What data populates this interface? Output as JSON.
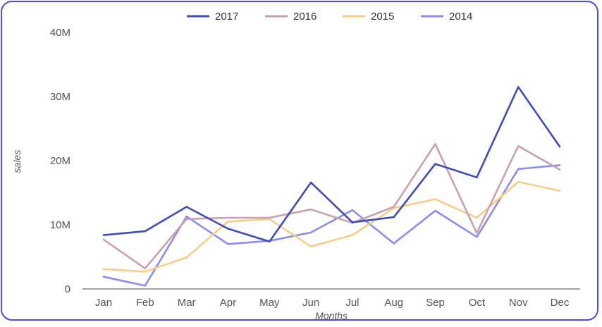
{
  "chart_data": {
    "type": "line",
    "title": "",
    "xlabel": "Months",
    "ylabel": "sales",
    "categories": [
      "Jan",
      "Feb",
      "Mar",
      "Apr",
      "May",
      "Jun",
      "Jul",
      "Aug",
      "Sep",
      "Oct",
      "Nov",
      "Dec"
    ],
    "ylim": [
      0,
      40000000
    ],
    "yticks": [
      0,
      10000000,
      20000000,
      30000000,
      40000000
    ],
    "ytick_labels": [
      "0",
      "10M",
      "20M",
      "30M",
      "40M"
    ],
    "grid": false,
    "legend_position": "top",
    "series": [
      {
        "name": "2017",
        "color": "#3f4db5",
        "values": [
          8400000,
          9000000,
          12800000,
          9400000,
          7400000,
          16600000,
          10400000,
          11200000,
          19500000,
          17400000,
          31500000,
          22200000
        ]
      },
      {
        "name": "2016",
        "color": "#c9a0ad",
        "values": [
          7700000,
          3200000,
          10900000,
          11100000,
          11100000,
          12400000,
          10300000,
          12800000,
          22600000,
          8700000,
          22300000,
          18600000
        ]
      },
      {
        "name": "2015",
        "color": "#f7cd8a",
        "values": [
          3100000,
          2700000,
          4900000,
          10500000,
          10900000,
          6600000,
          8400000,
          12600000,
          14000000,
          11100000,
          16700000,
          15300000
        ]
      },
      {
        "name": "2014",
        "color": "#8a8df0",
        "values": [
          1900000,
          500000,
          11300000,
          7000000,
          7500000,
          8800000,
          12300000,
          7100000,
          12200000,
          8100000,
          18700000,
          19300000
        ]
      }
    ]
  }
}
